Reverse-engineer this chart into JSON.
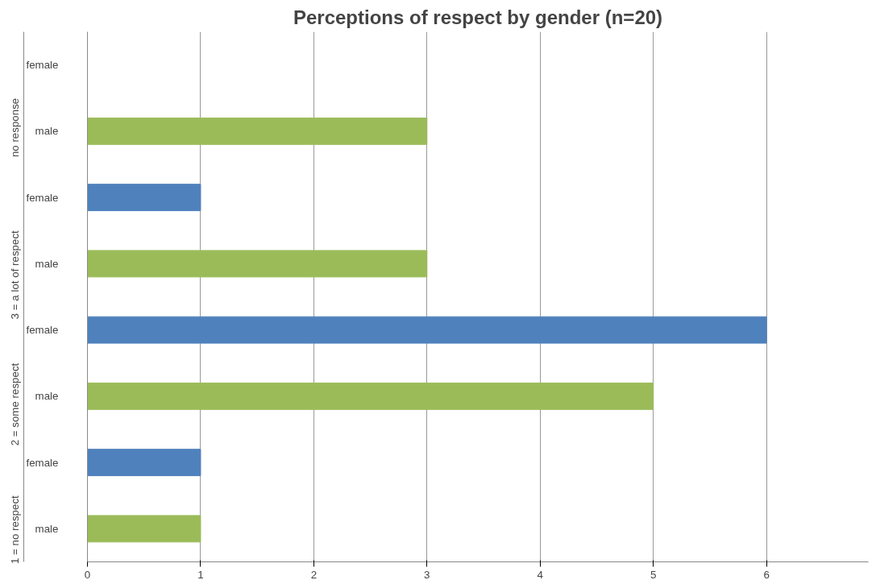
{
  "chart_data": {
    "type": "bar",
    "orientation": "horizontal",
    "title": "Perceptions of respect by gender (n=20)",
    "categories": [
      "female",
      "male",
      "female",
      "male",
      "female",
      "male",
      "female",
      "male"
    ],
    "values": [
      0,
      3,
      1,
      3,
      6,
      5,
      1,
      1
    ],
    "colors": [
      "#4f81bd",
      "#9bbb59",
      "#4f81bd",
      "#9bbb59",
      "#4f81bd",
      "#9bbb59",
      "#4f81bd",
      "#9bbb59"
    ],
    "annotations": [
      "no response",
      "3 = a lot of respect",
      "2 = some respect",
      "1 = no respect"
    ],
    "xlim": [
      0,
      6.9
    ],
    "xticks": [
      0,
      1,
      2,
      3,
      4,
      5,
      6
    ],
    "grid": "x"
  }
}
